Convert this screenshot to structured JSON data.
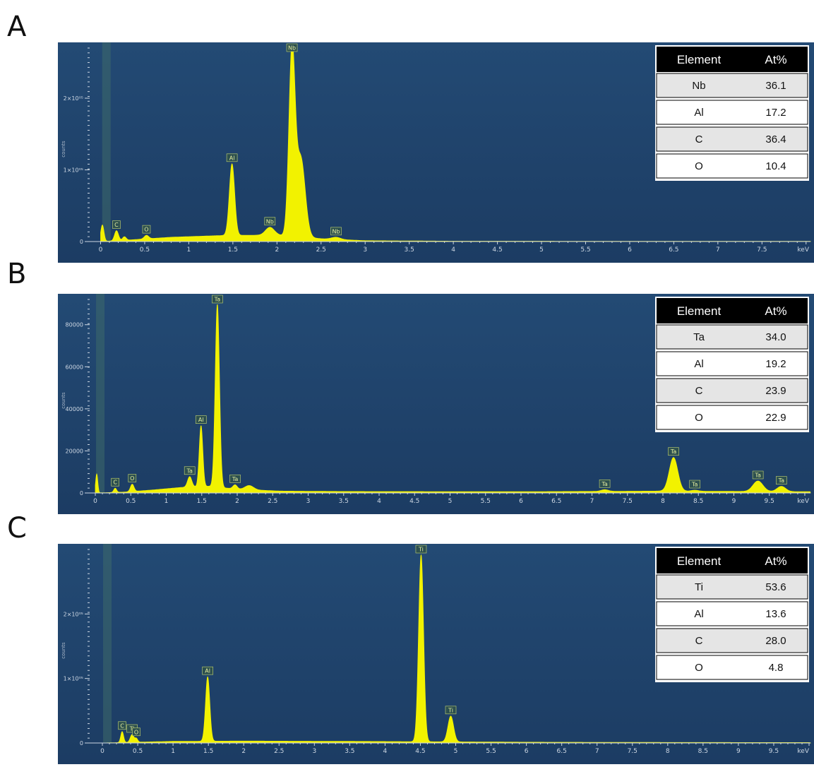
{
  "panels": [
    {
      "letter": "A",
      "x_unit": "keV",
      "y_title": "counts",
      "table": {
        "header": [
          "Element",
          "At%"
        ],
        "rows": [
          [
            "Nb",
            "36.1"
          ],
          [
            "Al",
            "17.2"
          ],
          [
            "C",
            "36.4"
          ],
          [
            "O",
            "10.4"
          ]
        ]
      }
    },
    {
      "letter": "B",
      "x_unit": "keV",
      "y_title": "counts",
      "table": {
        "header": [
          "Element",
          "At%"
        ],
        "rows": [
          [
            "Ta",
            "34.0"
          ],
          [
            "Al",
            "19.2"
          ],
          [
            "C",
            "23.9"
          ],
          [
            "O",
            "22.9"
          ]
        ]
      }
    },
    {
      "letter": "C",
      "x_unit": "keV",
      "y_title": "counts",
      "table": {
        "header": [
          "Element",
          "At%"
        ],
        "rows": [
          [
            "Ti",
            "53.6"
          ],
          [
            "Al",
            "13.6"
          ],
          [
            "C",
            "28.0"
          ],
          [
            "O",
            "4.8"
          ]
        ]
      }
    }
  ],
  "chart_data": [
    {
      "type": "area",
      "x_unit": "keV",
      "xlim": [
        -0.1,
        8.05
      ],
      "ylim": [
        0,
        270000
      ],
      "x_ticks": [
        "0",
        "0.5",
        "1",
        "1.5",
        "2",
        "2.5",
        "3",
        "3.5",
        "4",
        "4.5",
        "5",
        "5.5",
        "6",
        "6.5",
        "7",
        "7.5"
      ],
      "y_ticks": [
        {
          "value": 0,
          "label": "0"
        },
        {
          "value": 100000,
          "label": "1×10⁰⁵"
        },
        {
          "value": 200000,
          "label": "2×10⁰⁵"
        }
      ],
      "ylabel": "counts",
      "peaks": [
        {
          "x": 0.02,
          "y": 23000,
          "width": 0.018
        },
        {
          "x": 0.18,
          "y": 14000,
          "width": 0.022,
          "label": "C"
        },
        {
          "x": 0.27,
          "y": 5000,
          "width": 0.02
        },
        {
          "x": 0.52,
          "y": 5000,
          "width": 0.025,
          "label": "O"
        },
        {
          "x": 1.49,
          "y": 100000,
          "width": 0.03,
          "label": "Al"
        },
        {
          "x": 1.92,
          "y": 11000,
          "width": 0.05,
          "label": "Nb"
        },
        {
          "x": 2.17,
          "y": 258000,
          "width": 0.035,
          "label": "Nb"
        },
        {
          "x": 2.27,
          "y": 110000,
          "width": 0.05
        },
        {
          "x": 2.67,
          "y": 3000,
          "width": 0.05,
          "label": "Nb"
        }
      ],
      "background": [
        [
          0,
          0
        ],
        [
          0.3,
          2000
        ],
        [
          0.8,
          6000
        ],
        [
          1.4,
          8500
        ],
        [
          2.0,
          9000
        ],
        [
          2.5,
          4000
        ],
        [
          3.0,
          1200
        ],
        [
          4.0,
          500
        ],
        [
          8.05,
          300
        ]
      ]
    },
    {
      "type": "area",
      "x_unit": "keV",
      "xlim": [
        -0.05,
        10.08
      ],
      "ylim": [
        0,
        92000
      ],
      "x_ticks": [
        "0",
        "0.5",
        "1",
        "1.5",
        "2",
        "2.5",
        "3",
        "3.5",
        "4",
        "4.5",
        "5",
        "5.5",
        "6",
        "6.5",
        "7",
        "7.5",
        "8",
        "8.5",
        "9",
        "9.5"
      ],
      "y_ticks": [
        {
          "value": 0,
          "label": "0"
        },
        {
          "value": 20000,
          "label": "20000"
        },
        {
          "value": 40000,
          "label": "40000"
        },
        {
          "value": 60000,
          "label": "60000"
        },
        {
          "value": 80000,
          "label": "80000"
        }
      ],
      "ylabel": "counts",
      "peaks": [
        {
          "x": 0.02,
          "y": 9000,
          "width": 0.015
        },
        {
          "x": 0.28,
          "y": 2000,
          "width": 0.02,
          "label": "C"
        },
        {
          "x": 0.52,
          "y": 3500,
          "width": 0.025,
          "label": "O"
        },
        {
          "x": 1.33,
          "y": 5000,
          "width": 0.03,
          "label": "Ta"
        },
        {
          "x": 1.49,
          "y": 29000,
          "width": 0.025,
          "label": "Al"
        },
        {
          "x": 1.72,
          "y": 87000,
          "width": 0.03,
          "label": "Ta"
        },
        {
          "x": 1.97,
          "y": 2000,
          "width": 0.03,
          "label": "Ta"
        },
        {
          "x": 2.17,
          "y": 2000,
          "width": 0.06
        },
        {
          "x": 7.18,
          "y": 800,
          "width": 0.05,
          "label": "Ta"
        },
        {
          "x": 8.15,
          "y": 16000,
          "width": 0.06,
          "label": "Ta"
        },
        {
          "x": 8.45,
          "y": 500,
          "width": 0.05,
          "label": "Ta"
        },
        {
          "x": 9.34,
          "y": 5000,
          "width": 0.07,
          "label": "Ta"
        },
        {
          "x": 9.67,
          "y": 2500,
          "width": 0.06,
          "label": "Ta"
        }
      ],
      "background": [
        [
          0,
          0
        ],
        [
          0.4,
          400
        ],
        [
          0.8,
          1400
        ],
        [
          1.2,
          2600
        ],
        [
          1.6,
          3200
        ],
        [
          2.0,
          1800
        ],
        [
          2.6,
          900
        ],
        [
          3.5,
          700
        ],
        [
          6.0,
          600
        ],
        [
          8.0,
          900
        ],
        [
          10.08,
          600
        ]
      ]
    },
    {
      "type": "area",
      "x_unit": "keV",
      "xlim": [
        -0.15,
        10.02
      ],
      "ylim": [
        0,
        300000
      ],
      "x_ticks": [
        "0",
        "0.5",
        "1",
        "1.5",
        "2",
        "2.5",
        "3",
        "3.5",
        "4",
        "4.5",
        "5",
        "5.5",
        "6",
        "6.5",
        "7",
        "7.5",
        "8",
        "8.5",
        "9",
        "9.5"
      ],
      "y_ticks": [
        {
          "value": 0,
          "label": "0"
        },
        {
          "value": 100000,
          "label": "1×10⁰⁵"
        },
        {
          "value": 200000,
          "label": "2×10⁰⁵"
        }
      ],
      "ylabel": "counts",
      "peaks": [
        {
          "x": 0.28,
          "y": 17000,
          "width": 0.02,
          "label": "C"
        },
        {
          "x": 0.42,
          "y": 12000,
          "width": 0.025,
          "label": "Ti"
        },
        {
          "x": 0.48,
          "y": 6000,
          "width": 0.02,
          "label": "O"
        },
        {
          "x": 1.49,
          "y": 100000,
          "width": 0.03,
          "label": "Al"
        },
        {
          "x": 4.51,
          "y": 290000,
          "width": 0.035,
          "label": "Ti"
        },
        {
          "x": 4.93,
          "y": 40000,
          "width": 0.04,
          "label": "Ti"
        }
      ],
      "background": [
        [
          0,
          0
        ],
        [
          0.3,
          800
        ],
        [
          1.0,
          2500
        ],
        [
          2.0,
          3000
        ],
        [
          3.5,
          2500
        ],
        [
          4.5,
          2000
        ],
        [
          6.0,
          1200
        ],
        [
          8.0,
          800
        ],
        [
          10.02,
          600
        ]
      ]
    }
  ],
  "colors": {
    "plot_bg_top": "#234a74",
    "plot_bg_bottom": "#1c3c63",
    "spectrum": "#f2f200",
    "table_header": "#000000",
    "table_row_gray": "#e5e5e5"
  }
}
